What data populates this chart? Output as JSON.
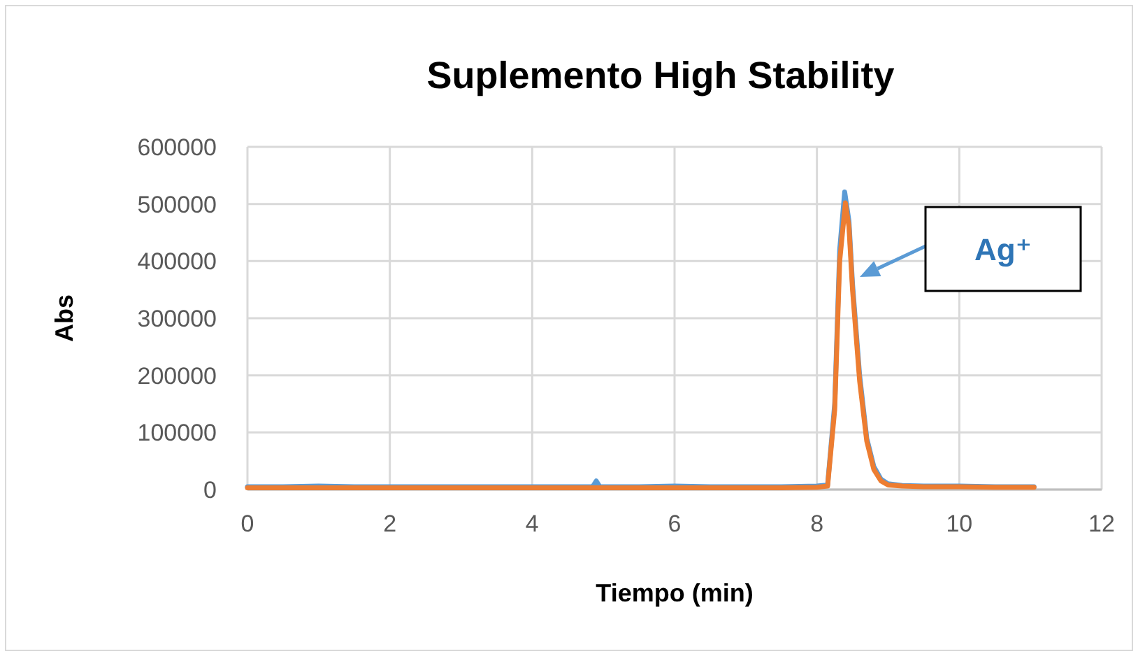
{
  "chart_data": {
    "type": "line",
    "title": "Suplemento High Stability",
    "xlabel": "Tiempo (min)",
    "ylabel": "Abs",
    "xlim": [
      0,
      12
    ],
    "xticks": [
      0,
      2,
      4,
      6,
      8,
      10,
      12
    ],
    "ylim": [
      0,
      600000
    ],
    "yticks": [
      0,
      100000,
      200000,
      300000,
      400000,
      500000,
      600000
    ],
    "grid": true,
    "annotations": [
      "Ag⁺"
    ],
    "series": [
      {
        "color": "#5b9bd5",
        "x": [
          0,
          0.5,
          1,
          1.5,
          2,
          2.5,
          3,
          3.5,
          4,
          4.5,
          4.85,
          4.9,
          4.95,
          5.5,
          6,
          6.5,
          7,
          7.5,
          8,
          8.15,
          8.25,
          8.32,
          8.39,
          8.45,
          8.5,
          8.6,
          8.7,
          8.8,
          8.9,
          9,
          9.2,
          9.5,
          10,
          10.5,
          11.05
        ],
        "values": [
          5000,
          5000,
          6000,
          5000,
          5000,
          5000,
          5000,
          5000,
          5000,
          5000,
          5000,
          15000,
          5000,
          5000,
          6000,
          5000,
          5000,
          5000,
          6000,
          8000,
          150000,
          420000,
          521000,
          470000,
          360000,
          200000,
          90000,
          40000,
          18000,
          10000,
          7000,
          6000,
          6000,
          5000,
          5000
        ]
      },
      {
        "color": "#ed7d31",
        "x": [
          0,
          0.5,
          1,
          1.5,
          2,
          2.5,
          3,
          3.5,
          4,
          4.5,
          5,
          5.5,
          6,
          6.5,
          7,
          7.5,
          8,
          8.15,
          8.25,
          8.32,
          8.4,
          8.45,
          8.5,
          8.6,
          8.7,
          8.8,
          8.9,
          9,
          9.2,
          9.5,
          10,
          10.5,
          11.05
        ],
        "values": [
          3000,
          3000,
          3000,
          3000,
          3000,
          3000,
          3000,
          3000,
          3000,
          3000,
          3000,
          3000,
          3000,
          3000,
          3000,
          3000,
          4000,
          6000,
          140000,
          400000,
          502000,
          460000,
          350000,
          190000,
          85000,
          35000,
          15000,
          8000,
          6000,
          5000,
          5000,
          4000,
          4000
        ]
      }
    ]
  }
}
